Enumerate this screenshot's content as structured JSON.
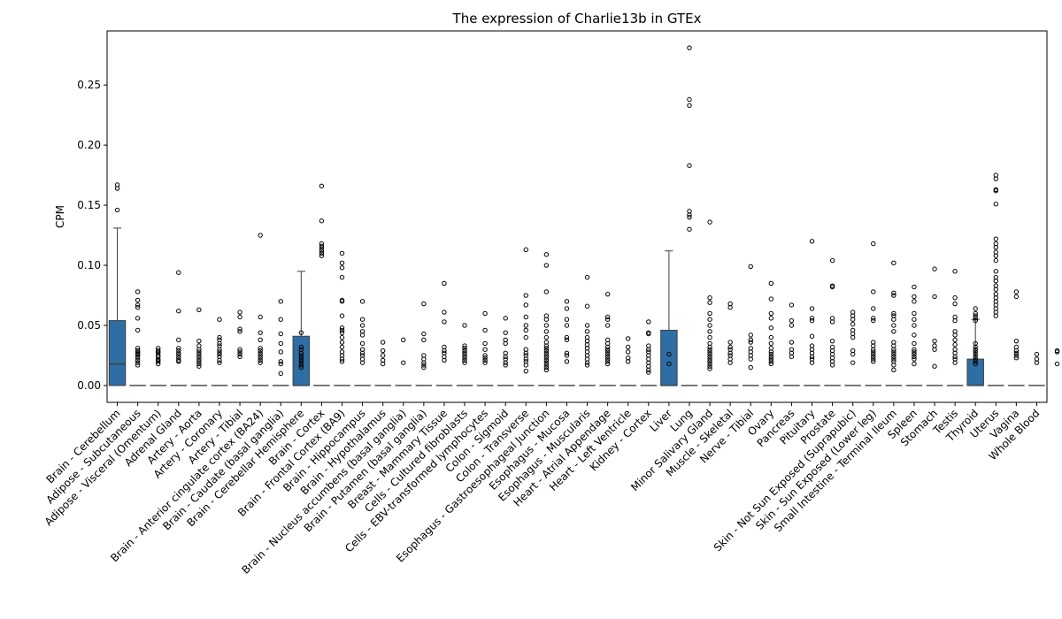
{
  "chart_data": {
    "type": "box",
    "title": "The expression of Charlie13b in GTEx",
    "xlabel": "",
    "ylabel": "CPM",
    "ylim": [
      -0.014,
      0.295
    ],
    "yticks": [
      0.0,
      0.05,
      0.1,
      0.15,
      0.2,
      0.25
    ],
    "ytick_labels": [
      "0.00",
      "0.05",
      "0.10",
      "0.15",
      "0.20",
      "0.25"
    ],
    "grid": false,
    "box_color": "#2e6ea4",
    "categories": [
      "Brain - Cerebellum",
      "Adipose - Subcutaneous",
      "Adipose - Visceral (Omentum)",
      "Adrenal Gland",
      "Artery - Aorta",
      "Artery - Coronary",
      "Artery - Tibial",
      "Brain - Anterior cingulate cortex (BA24)",
      "Brain - Caudate (basal ganglia)",
      "Brain - Cerebellar Hemisphere",
      "Brain - Cortex",
      "Brain - Frontal Cortex (BA9)",
      "Brain - Hippocampus",
      "Brain - Hypothalamus",
      "Brain - Nucleus accumbens (basal ganglia)",
      "Brain - Putamen (basal ganglia)",
      "Breast - Mammary Tissue",
      "Cells - Cultured fibroblasts",
      "Cells - EBV-transformed lymphocytes",
      "Colon - Sigmoid",
      "Colon - Transverse",
      "Esophagus - Gastroesophageal Junction",
      "Esophagus - Mucosa",
      "Esophagus - Muscularis",
      "Heart - Atrial Appendage",
      "Heart - Left Ventricle",
      "Kidney - Cortex",
      "Liver",
      "Lung",
      "Minor Salivary Gland",
      "Muscle - Skeletal",
      "Nerve - Tibial",
      "Ovary",
      "Pancreas",
      "Pituitary",
      "Prostate",
      "Skin - Not Sun Exposed (Suprapubic)",
      "Skin - Sun Exposed (Lower leg)",
      "Small Intestine - Terminal Ileum",
      "Spleen",
      "Stomach",
      "Testis",
      "Thyroid",
      "Uterus",
      "Vagina",
      "Whole Blood"
    ],
    "boxes": [
      {
        "q1": 0,
        "median": 0.018,
        "q3": 0.054,
        "whisker_low": 0,
        "whisker_high": 0.131
      },
      {
        "q1": 0,
        "median": 0,
        "q3": 0,
        "whisker_low": 0,
        "whisker_high": 0
      },
      {
        "q1": 0,
        "median": 0,
        "q3": 0,
        "whisker_low": 0,
        "whisker_high": 0
      },
      {
        "q1": 0,
        "median": 0,
        "q3": 0,
        "whisker_low": 0,
        "whisker_high": 0
      },
      {
        "q1": 0,
        "median": 0,
        "q3": 0,
        "whisker_low": 0,
        "whisker_high": 0
      },
      {
        "q1": 0,
        "median": 0,
        "q3": 0,
        "whisker_low": 0,
        "whisker_high": 0
      },
      {
        "q1": 0,
        "median": 0,
        "q3": 0,
        "whisker_low": 0,
        "whisker_high": 0
      },
      {
        "q1": 0,
        "median": 0,
        "q3": 0,
        "whisker_low": 0,
        "whisker_high": 0
      },
      {
        "q1": 0,
        "median": 0,
        "q3": 0,
        "whisker_low": 0,
        "whisker_high": 0
      },
      {
        "q1": 0,
        "median": 0,
        "q3": 0.041,
        "whisker_low": 0,
        "whisker_high": 0.095
      },
      {
        "q1": 0,
        "median": 0,
        "q3": 0,
        "whisker_low": 0,
        "whisker_high": 0
      },
      {
        "q1": 0,
        "median": 0,
        "q3": 0,
        "whisker_low": 0,
        "whisker_high": 0
      },
      {
        "q1": 0,
        "median": 0,
        "q3": 0,
        "whisker_low": 0,
        "whisker_high": 0
      },
      {
        "q1": 0,
        "median": 0,
        "q3": 0,
        "whisker_low": 0,
        "whisker_high": 0
      },
      {
        "q1": 0,
        "median": 0,
        "q3": 0,
        "whisker_low": 0,
        "whisker_high": 0
      },
      {
        "q1": 0,
        "median": 0,
        "q3": 0,
        "whisker_low": 0,
        "whisker_high": 0
      },
      {
        "q1": 0,
        "median": 0,
        "q3": 0,
        "whisker_low": 0,
        "whisker_high": 0
      },
      {
        "q1": 0,
        "median": 0,
        "q3": 0,
        "whisker_low": 0,
        "whisker_high": 0
      },
      {
        "q1": 0,
        "median": 0,
        "q3": 0,
        "whisker_low": 0,
        "whisker_high": 0
      },
      {
        "q1": 0,
        "median": 0,
        "q3": 0,
        "whisker_low": 0,
        "whisker_high": 0
      },
      {
        "q1": 0,
        "median": 0,
        "q3": 0,
        "whisker_low": 0,
        "whisker_high": 0
      },
      {
        "q1": 0,
        "median": 0,
        "q3": 0,
        "whisker_low": 0,
        "whisker_high": 0
      },
      {
        "q1": 0,
        "median": 0,
        "q3": 0,
        "whisker_low": 0,
        "whisker_high": 0
      },
      {
        "q1": 0,
        "median": 0,
        "q3": 0,
        "whisker_low": 0,
        "whisker_high": 0
      },
      {
        "q1": 0,
        "median": 0,
        "q3": 0,
        "whisker_low": 0,
        "whisker_high": 0
      },
      {
        "q1": 0,
        "median": 0,
        "q3": 0,
        "whisker_low": 0,
        "whisker_high": 0
      },
      {
        "q1": 0,
        "median": 0,
        "q3": 0,
        "whisker_low": 0,
        "whisker_high": 0
      },
      {
        "q1": 0,
        "median": 0,
        "q3": 0.046,
        "whisker_low": 0,
        "whisker_high": 0.112
      },
      {
        "q1": 0,
        "median": 0,
        "q3": 0,
        "whisker_low": 0,
        "whisker_high": 0
      },
      {
        "q1": 0,
        "median": 0,
        "q3": 0,
        "whisker_low": 0,
        "whisker_high": 0
      },
      {
        "q1": 0,
        "median": 0,
        "q3": 0,
        "whisker_low": 0,
        "whisker_high": 0
      },
      {
        "q1": 0,
        "median": 0,
        "q3": 0,
        "whisker_low": 0,
        "whisker_high": 0
      },
      {
        "q1": 0,
        "median": 0,
        "q3": 0,
        "whisker_low": 0,
        "whisker_high": 0
      },
      {
        "q1": 0,
        "median": 0,
        "q3": 0,
        "whisker_low": 0,
        "whisker_high": 0
      },
      {
        "q1": 0,
        "median": 0,
        "q3": 0,
        "whisker_low": 0,
        "whisker_high": 0
      },
      {
        "q1": 0,
        "median": 0,
        "q3": 0,
        "whisker_low": 0,
        "whisker_high": 0
      },
      {
        "q1": 0,
        "median": 0,
        "q3": 0,
        "whisker_low": 0,
        "whisker_high": 0
      },
      {
        "q1": 0,
        "median": 0,
        "q3": 0,
        "whisker_low": 0,
        "whisker_high": 0
      },
      {
        "q1": 0,
        "median": 0,
        "q3": 0,
        "whisker_low": 0,
        "whisker_high": 0
      },
      {
        "q1": 0,
        "median": 0,
        "q3": 0,
        "whisker_low": 0,
        "whisker_high": 0
      },
      {
        "q1": 0,
        "median": 0,
        "q3": 0,
        "whisker_low": 0,
        "whisker_high": 0
      },
      {
        "q1": 0,
        "median": 0,
        "q3": 0,
        "whisker_low": 0,
        "whisker_high": 0
      },
      {
        "q1": 0,
        "median": 0,
        "q3": 0.022,
        "whisker_low": 0,
        "whisker_high": 0.055
      },
      {
        "q1": 0,
        "median": 0,
        "q3": 0,
        "whisker_low": 0,
        "whisker_high": 0
      },
      {
        "q1": 0,
        "median": 0,
        "q3": 0,
        "whisker_low": 0,
        "whisker_high": 0
      },
      {
        "q1": 0,
        "median": 0,
        "q3": 0,
        "whisker_low": 0,
        "whisker_high": 0
      }
    ],
    "outliers": [
      [
        0.167,
        0.164,
        0.146
      ],
      [
        0.078,
        0.071,
        0.067,
        0.065,
        0.056,
        0.046,
        0.031,
        0.029,
        0.028,
        0.027,
        0.026,
        0.025,
        0.023,
        0.021,
        0.019,
        0.017
      ],
      [
        0.031,
        0.029,
        0.028,
        0.027,
        0.025,
        0.024,
        0.022,
        0.021,
        0.02,
        0.018
      ],
      [
        0.094,
        0.062,
        0.038,
        0.031,
        0.029,
        0.027,
        0.025,
        0.023,
        0.021,
        0.02
      ],
      [
        0.063,
        0.037,
        0.033,
        0.03,
        0.028,
        0.026,
        0.024,
        0.022,
        0.02,
        0.018,
        0.016
      ],
      [
        0.055,
        0.04,
        0.038,
        0.035,
        0.033,
        0.03,
        0.028,
        0.026,
        0.024,
        0.021,
        0.019
      ],
      [
        0.061,
        0.057,
        0.047,
        0.045,
        0.03,
        0.028,
        0.026,
        0.024
      ],
      [
        0.125,
        0.057,
        0.044,
        0.038,
        0.031,
        0.029,
        0.027,
        0.025,
        0.023,
        0.021,
        0.019
      ],
      [
        0.07,
        0.055,
        0.043,
        0.035,
        0.028,
        0.02,
        0.018,
        0.01
      ],
      [
        0.044,
        0.032,
        0.03,
        0.027,
        0.025,
        0.023,
        0.021,
        0.019,
        0.017,
        0.015
      ],
      [
        0.166,
        0.137,
        0.118,
        0.116,
        0.114,
        0.112,
        0.11,
        0.108
      ],
      [
        0.11,
        0.102,
        0.098,
        0.09,
        0.071,
        0.07,
        0.058,
        0.048,
        0.046,
        0.044,
        0.04,
        0.036,
        0.032,
        0.028,
        0.025,
        0.022,
        0.02
      ],
      [
        0.07,
        0.055,
        0.05,
        0.045,
        0.042,
        0.035,
        0.03,
        0.027,
        0.025,
        0.022,
        0.019
      ],
      [
        0.036,
        0.029,
        0.025,
        0.021,
        0.018
      ],
      [
        0.038,
        0.019
      ],
      [
        0.068,
        0.043,
        0.038,
        0.025,
        0.022,
        0.019,
        0.017,
        0.015
      ],
      [
        0.085,
        0.061,
        0.053,
        0.032,
        0.029,
        0.027,
        0.024,
        0.021
      ],
      [
        0.05,
        0.033,
        0.031,
        0.029,
        0.027,
        0.025,
        0.023,
        0.021,
        0.019
      ],
      [
        0.06,
        0.046,
        0.035,
        0.03,
        0.025,
        0.023,
        0.021,
        0.019
      ],
      [
        0.056,
        0.044,
        0.038,
        0.035,
        0.027,
        0.024,
        0.022,
        0.019,
        0.017
      ],
      [
        0.113,
        0.075,
        0.067,
        0.057,
        0.05,
        0.046,
        0.04,
        0.03,
        0.027,
        0.025,
        0.022,
        0.02,
        0.017,
        0.012
      ],
      [
        0.109,
        0.1,
        0.078,
        0.058,
        0.055,
        0.05,
        0.045,
        0.04,
        0.036,
        0.033,
        0.031,
        0.029,
        0.027,
        0.025,
        0.023,
        0.021,
        0.019,
        0.017,
        0.015,
        0.013
      ],
      [
        0.07,
        0.064,
        0.055,
        0.05,
        0.04,
        0.038,
        0.027,
        0.025,
        0.02
      ],
      [
        0.09,
        0.066,
        0.05,
        0.045,
        0.04,
        0.037,
        0.034,
        0.031,
        0.028,
        0.025,
        0.022,
        0.019,
        0.017
      ],
      [
        0.076,
        0.057,
        0.055,
        0.05,
        0.038,
        0.035,
        0.032,
        0.03,
        0.028,
        0.026,
        0.024,
        0.022,
        0.02,
        0.018
      ],
      [
        0.039,
        0.032,
        0.028,
        0.023,
        0.02
      ],
      [
        0.053,
        0.044,
        0.043,
        0.033,
        0.03,
        0.028,
        0.025,
        0.022,
        0.019,
        0.016,
        0.013,
        0.011
      ],
      [
        0.026,
        0.018
      ],
      [
        0.281,
        0.238,
        0.233,
        0.183,
        0.145,
        0.142,
        0.14,
        0.13
      ],
      [
        0.136,
        0.073,
        0.069,
        0.06,
        0.055,
        0.05,
        0.045,
        0.04,
        0.035,
        0.032,
        0.03,
        0.028,
        0.026,
        0.024,
        0.022,
        0.02,
        0.018,
        0.016,
        0.014
      ],
      [
        0.068,
        0.065,
        0.036,
        0.032,
        0.03,
        0.027,
        0.025,
        0.022,
        0.019
      ],
      [
        0.099,
        0.042,
        0.038,
        0.036,
        0.031,
        0.028,
        0.025,
        0.022,
        0.015
      ],
      [
        0.085,
        0.072,
        0.06,
        0.056,
        0.048,
        0.04,
        0.035,
        0.031,
        0.028,
        0.026,
        0.024,
        0.022,
        0.02,
        0.018
      ],
      [
        0.067,
        0.054,
        0.05,
        0.036,
        0.03,
        0.027,
        0.024
      ],
      [
        0.12,
        0.064,
        0.056,
        0.054,
        0.041,
        0.033,
        0.03,
        0.027,
        0.024,
        0.022,
        0.019
      ],
      [
        0.104,
        0.083,
        0.082,
        0.056,
        0.053,
        0.037,
        0.032,
        0.029,
        0.026,
        0.023,
        0.02,
        0.017
      ],
      [
        0.061,
        0.058,
        0.055,
        0.051,
        0.046,
        0.043,
        0.04,
        0.029,
        0.026,
        0.019
      ],
      [
        0.118,
        0.078,
        0.064,
        0.056,
        0.054,
        0.036,
        0.033,
        0.03,
        0.028,
        0.026,
        0.024,
        0.022,
        0.02
      ],
      [
        0.102,
        0.077,
        0.075,
        0.06,
        0.058,
        0.055,
        0.05,
        0.045,
        0.036,
        0.033,
        0.03,
        0.028,
        0.026,
        0.024,
        0.022,
        0.02,
        0.017,
        0.013
      ],
      [
        0.082,
        0.074,
        0.07,
        0.06,
        0.055,
        0.05,
        0.042,
        0.035,
        0.03,
        0.028,
        0.026,
        0.024,
        0.022,
        0.018
      ],
      [
        0.097,
        0.074,
        0.037,
        0.033,
        0.03,
        0.016
      ],
      [
        0.095,
        0.073,
        0.068,
        0.057,
        0.054,
        0.045,
        0.042,
        0.038,
        0.034,
        0.03,
        0.027,
        0.024,
        0.022,
        0.019
      ],
      [
        0.064,
        0.06,
        0.058,
        0.056,
        0.054,
        0.035,
        0.032,
        0.03,
        0.028,
        0.026,
        0.024,
        0.022,
        0.02,
        0.018
      ],
      [
        0.175,
        0.172,
        0.163,
        0.162,
        0.151,
        0.122,
        0.118,
        0.115,
        0.111,
        0.108,
        0.104,
        0.095,
        0.09,
        0.087,
        0.083,
        0.08,
        0.076,
        0.073,
        0.07,
        0.067,
        0.064,
        0.061,
        0.058
      ],
      [
        0.078,
        0.074,
        0.037,
        0.032,
        0.029,
        0.027,
        0.025,
        0.023
      ],
      [
        0.026,
        0.022,
        0.019
      ],
      [
        0.029,
        0.028,
        0.018
      ]
    ]
  }
}
